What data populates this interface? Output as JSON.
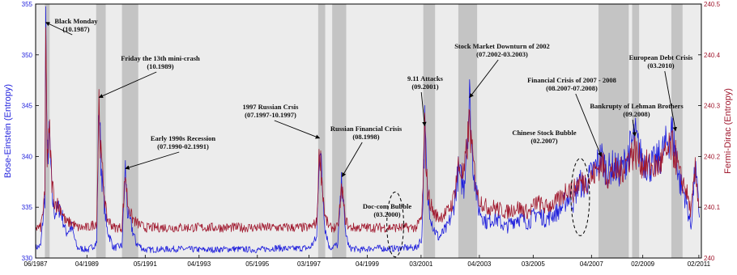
{
  "chart_data": {
    "type": "line",
    "title": "",
    "xlabel": "",
    "ylabel_left": "Bose-Einstein (Entropy)",
    "ylabel_right": "Fermi-Dirac (Entropy)",
    "ylim_left": [
      330,
      355
    ],
    "ylim_right": [
      240.0,
      240.5
    ],
    "xlim": [
      "1987-06",
      "2011-03"
    ],
    "left_ticks": [
      "330",
      "335",
      "340",
      "345",
      "350",
      "355"
    ],
    "right_ticks": [
      "240",
      "240.1",
      "240.2",
      "240.3",
      "240.4",
      "240.5"
    ],
    "x_tick_labels": [
      {
        "label": "06/1987",
        "date": 1987.42
      },
      {
        "label": "04/1989",
        "date": 1989.25
      },
      {
        "label": "05/1991",
        "date": 1991.33
      },
      {
        "label": "04/1993",
        "date": 1993.25
      },
      {
        "label": "05/1995",
        "date": 1995.33
      },
      {
        "label": "03/1997",
        "date": 1997.17
      },
      {
        "label": "04/1999",
        "date": 1999.25
      },
      {
        "label": "03/2001",
        "date": 2001.17
      },
      {
        "label": "04/2003",
        "date": 2003.25
      },
      {
        "label": "03/2005",
        "date": 2005.17
      },
      {
        "label": "04/2007",
        "date": 2007.25
      },
      {
        "label": "02/2009",
        "date": 2009.08
      },
      {
        "label": "02/2011",
        "date": 2011.08
      }
    ],
    "crisis_periods": [
      {
        "start": 1987.75,
        "end": 1987.92
      },
      {
        "start": 1989.58,
        "end": 1989.92
      },
      {
        "start": 1990.5,
        "end": 1991.08
      },
      {
        "start": 1997.5,
        "end": 1997.75
      },
      {
        "start": 1998.0,
        "end": 1998.5
      },
      {
        "start": 2001.25,
        "end": 2001.67
      },
      {
        "start": 2002.5,
        "end": 2003.17
      },
      {
        "start": 2007.5,
        "end": 2008.58
      },
      {
        "start": 2008.7,
        "end": 2008.95
      },
      {
        "start": 2010.1,
        "end": 2010.5
      }
    ],
    "series": [
      {
        "name": "Bose-Einstein (Entropy)",
        "axis": "left",
        "color": "#1f1fdc",
        "points": [
          [
            1987.42,
            331.0
          ],
          [
            1987.6,
            331.2
          ],
          [
            1987.75,
            336
          ],
          [
            1987.78,
            353.2
          ],
          [
            1987.83,
            340
          ],
          [
            1987.92,
            342
          ],
          [
            1988.0,
            336
          ],
          [
            1988.1,
            334.5
          ],
          [
            1988.3,
            335
          ],
          [
            1988.5,
            332.5
          ],
          [
            1988.7,
            333
          ],
          [
            1988.9,
            331
          ],
          [
            1989.3,
            330.8
          ],
          [
            1989.6,
            331.5
          ],
          [
            1989.68,
            345.8
          ],
          [
            1989.75,
            339.5
          ],
          [
            1989.85,
            336
          ],
          [
            1989.95,
            333
          ],
          [
            1990.2,
            331
          ],
          [
            1990.5,
            331.2
          ],
          [
            1990.62,
            338.8
          ],
          [
            1990.7,
            334.5
          ],
          [
            1990.85,
            333
          ],
          [
            1991.0,
            331.5
          ],
          [
            1991.3,
            330.8
          ],
          [
            1992.5,
            330.9
          ],
          [
            1993.5,
            330.8
          ],
          [
            1994.5,
            330.9
          ],
          [
            1995.3,
            330.8
          ],
          [
            1996.0,
            331
          ],
          [
            1996.5,
            330.9
          ],
          [
            1997.2,
            331
          ],
          [
            1997.45,
            332
          ],
          [
            1997.55,
            341.8
          ],
          [
            1997.65,
            337
          ],
          [
            1997.75,
            333
          ],
          [
            1997.9,
            331
          ],
          [
            1998.2,
            331.3
          ],
          [
            1998.35,
            338
          ],
          [
            1998.45,
            333
          ],
          [
            1998.6,
            331
          ],
          [
            1999.0,
            330.8
          ],
          [
            1999.5,
            331
          ],
          [
            2000.0,
            330.9
          ],
          [
            2000.5,
            331
          ],
          [
            2001.0,
            331
          ],
          [
            2001.2,
            332
          ],
          [
            2001.3,
            343
          ],
          [
            2001.4,
            336
          ],
          [
            2001.6,
            333
          ],
          [
            2001.8,
            332
          ],
          [
            2002.1,
            333
          ],
          [
            2002.3,
            334.5
          ],
          [
            2002.5,
            338.5
          ],
          [
            2002.7,
            337
          ],
          [
            2002.9,
            345.8
          ],
          [
            2003.0,
            340
          ],
          [
            2003.2,
            335
          ],
          [
            2003.5,
            333.5
          ],
          [
            2003.8,
            334
          ],
          [
            2004.2,
            333
          ],
          [
            2004.6,
            334
          ],
          [
            2005.0,
            333.5
          ],
          [
            2005.3,
            334.5
          ],
          [
            2005.6,
            333.8
          ],
          [
            2006.0,
            334.5
          ],
          [
            2006.2,
            335
          ],
          [
            2006.4,
            336
          ],
          [
            2006.6,
            335.5
          ],
          [
            2006.8,
            337.5
          ],
          [
            2007.0,
            337
          ],
          [
            2007.3,
            338.5
          ],
          [
            2007.6,
            340
          ],
          [
            2007.8,
            338.5
          ],
          [
            2008.0,
            339
          ],
          [
            2008.3,
            338.5
          ],
          [
            2008.6,
            340.5
          ],
          [
            2008.8,
            342
          ],
          [
            2009.0,
            340
          ],
          [
            2009.3,
            339
          ],
          [
            2009.6,
            339.5
          ],
          [
            2009.9,
            341
          ],
          [
            2010.1,
            342.5
          ],
          [
            2010.25,
            340.5
          ],
          [
            2010.4,
            337.5
          ],
          [
            2010.6,
            336
          ],
          [
            2010.8,
            333
          ],
          [
            2010.95,
            339
          ],
          [
            2011.1,
            334
          ]
        ]
      },
      {
        "name": "Fermi-Dirac (Entropy)",
        "axis": "right",
        "color": "#a0182e",
        "points": [
          [
            1987.42,
            240.06
          ],
          [
            1987.6,
            240.06
          ],
          [
            1987.75,
            240.12
          ],
          [
            1987.78,
            240.44
          ],
          [
            1987.83,
            240.2
          ],
          [
            1987.92,
            240.24
          ],
          [
            1988.0,
            240.15
          ],
          [
            1988.1,
            240.11
          ],
          [
            1988.3,
            240.1
          ],
          [
            1988.5,
            240.07
          ],
          [
            1988.7,
            240.07
          ],
          [
            1988.9,
            240.06
          ],
          [
            1989.3,
            240.06
          ],
          [
            1989.6,
            240.07
          ],
          [
            1989.68,
            240.31
          ],
          [
            1989.75,
            240.2
          ],
          [
            1989.85,
            240.14
          ],
          [
            1989.95,
            240.08
          ],
          [
            1990.2,
            240.06
          ],
          [
            1990.5,
            240.06
          ],
          [
            1990.62,
            240.17
          ],
          [
            1990.7,
            240.11
          ],
          [
            1990.85,
            240.08
          ],
          [
            1991.0,
            240.07
          ],
          [
            1991.3,
            240.06
          ],
          [
            1992.5,
            240.06
          ],
          [
            1993.5,
            240.06
          ],
          [
            1994.5,
            240.06
          ],
          [
            1995.3,
            240.06
          ],
          [
            1996.0,
            240.06
          ],
          [
            1996.5,
            240.06
          ],
          [
            1997.2,
            240.06
          ],
          [
            1997.45,
            240.07
          ],
          [
            1997.55,
            240.22
          ],
          [
            1997.65,
            240.14
          ],
          [
            1997.75,
            240.08
          ],
          [
            1997.9,
            240.06
          ],
          [
            1998.2,
            240.06
          ],
          [
            1998.35,
            240.14
          ],
          [
            1998.45,
            240.08
          ],
          [
            1998.6,
            240.06
          ],
          [
            1999.0,
            240.06
          ],
          [
            1999.5,
            240.06
          ],
          [
            2000.0,
            240.06
          ],
          [
            2000.5,
            240.06
          ],
          [
            2001.0,
            240.06
          ],
          [
            2001.2,
            240.08
          ],
          [
            2001.3,
            240.25
          ],
          [
            2001.4,
            240.13
          ],
          [
            2001.6,
            240.09
          ],
          [
            2001.8,
            240.08
          ],
          [
            2002.1,
            240.09
          ],
          [
            2002.3,
            240.11
          ],
          [
            2002.5,
            240.18
          ],
          [
            2002.7,
            240.16
          ],
          [
            2002.9,
            240.27
          ],
          [
            2003.0,
            240.2
          ],
          [
            2003.2,
            240.12
          ],
          [
            2003.5,
            240.1
          ],
          [
            2003.8,
            240.1
          ],
          [
            2004.2,
            240.09
          ],
          [
            2004.6,
            240.1
          ],
          [
            2005.0,
            240.09
          ],
          [
            2005.3,
            240.11
          ],
          [
            2005.6,
            240.1
          ],
          [
            2006.0,
            240.11
          ],
          [
            2006.2,
            240.12
          ],
          [
            2006.4,
            240.14
          ],
          [
            2006.6,
            240.13
          ],
          [
            2006.8,
            240.15
          ],
          [
            2007.0,
            240.15
          ],
          [
            2007.3,
            240.16
          ],
          [
            2007.6,
            240.19
          ],
          [
            2007.8,
            240.16
          ],
          [
            2008.0,
            240.17
          ],
          [
            2008.3,
            240.17
          ],
          [
            2008.6,
            240.2
          ],
          [
            2008.8,
            240.21
          ],
          [
            2009.0,
            240.19
          ],
          [
            2009.3,
            240.18
          ],
          [
            2009.6,
            240.18
          ],
          [
            2009.9,
            240.2
          ],
          [
            2010.1,
            240.22
          ],
          [
            2010.25,
            240.2
          ],
          [
            2010.4,
            240.16
          ],
          [
            2010.6,
            240.14
          ],
          [
            2010.8,
            240.09
          ],
          [
            2010.95,
            240.17
          ],
          [
            2011.1,
            240.1
          ]
        ]
      }
    ],
    "annotations": [
      {
        "line1": "Black Monday",
        "line2": "(10.1987)",
        "target": [
          1987.78,
          353.2
        ]
      },
      {
        "line1": "Friday the 13th mini-crash",
        "line2": "(10.1989)",
        "target": [
          1989.68,
          345.8
        ]
      },
      {
        "line1": "Early 1990s Recession",
        "line2": "(07.1990-02.1991)",
        "target": [
          1990.62,
          338.8
        ]
      },
      {
        "line1": "1997 Russian Crsis",
        "line2": "(07.1997-10.1997)",
        "target": [
          1997.55,
          341.8
        ]
      },
      {
        "line1": "Russian Financial Crisis",
        "line2": "(08.1998)",
        "target": [
          1998.35,
          338.0
        ]
      },
      {
        "line1": "Doc-com Bubble",
        "line2": "(03.2000)",
        "target": [
          2000.0,
          331.5
        ]
      },
      {
        "line1": "9.11 Attacks",
        "line2": "(09.2001)",
        "target": [
          2001.3,
          343.0
        ]
      },
      {
        "line1": "Stock Market Downturn of 2002",
        "line2": "(07.2002-03.2003)",
        "target": [
          2002.9,
          345.8
        ]
      },
      {
        "line1": "Chinese Stock Bubble",
        "line2": "(02.2007)",
        "target": [
          2006.9,
          337.5
        ]
      },
      {
        "line1": "Financial Crisis of 2007 - 2008",
        "line2": "(08.2007-07.2008)",
        "target": [
          2007.6,
          340.0
        ]
      },
      {
        "line1": "Bankrupty of Lehman Brothers",
        "line2": "(09.2008)",
        "target": [
          2008.8,
          342.0
        ]
      },
      {
        "line1": "European Debt Crisis",
        "line2": "(03.2010)",
        "target": [
          2010.25,
          342.5
        ]
      }
    ],
    "bubbles": [
      {
        "center": [
          2000.25,
          333.3
        ],
        "rx_years": 0.3,
        "ry_units": 3.2
      },
      {
        "center": [
          2006.85,
          336.0
        ],
        "rx_years": 0.33,
        "ry_units": 3.8
      }
    ]
  }
}
